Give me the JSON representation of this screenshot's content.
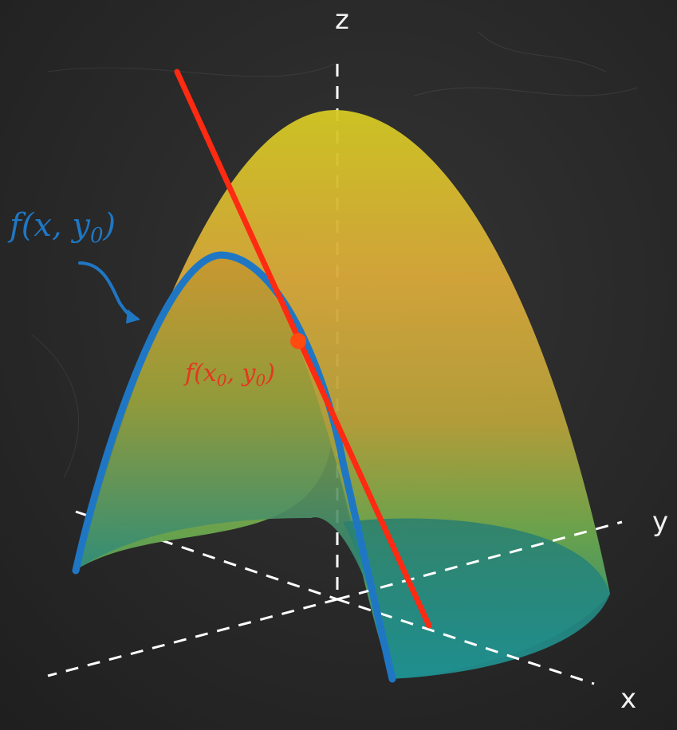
{
  "axes": {
    "z_label": "z",
    "y_label": "y",
    "x_label": "x"
  },
  "labels": {
    "curve_label_text": "f(x, y",
    "curve_label_sub": "0",
    "curve_label_close": ")",
    "point_label_text": "f(x",
    "point_label_sub_x": "0",
    "point_label_mid": ", y",
    "point_label_sub_y": "0",
    "point_label_close": ")"
  },
  "colors": {
    "board": "#2b2b2b",
    "axis_dash": "#ffffff",
    "surface_top": "#d6c526",
    "surface_mid": "#d9a23a",
    "surface_low": "#6aa84f",
    "surface_base": "#1f8f8f",
    "curve": "#1f77c4",
    "tangent": "#ff2a12",
    "point": "#ff4a10"
  },
  "icons": {
    "pointer": "curved-arrow-icon"
  }
}
